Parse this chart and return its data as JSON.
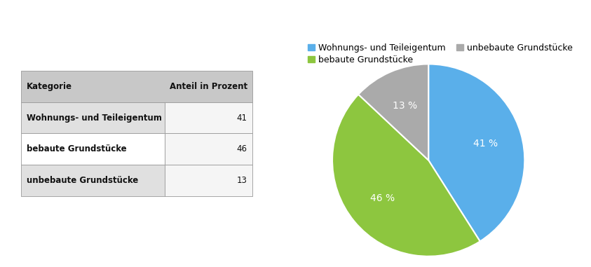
{
  "categories": [
    "Wohnungs- und Teileigentum",
    "bebaute Grundstücke",
    "unbebaute Grundstücke"
  ],
  "values": [
    41,
    46,
    13
  ],
  "colors": [
    "#5AAFEA",
    "#8DC63F",
    "#AAAAAA"
  ],
  "labels": [
    "41 %",
    "46 %",
    "13 %"
  ],
  "legend_labels": [
    "Wohnungs- und Teileigentum",
    "bebaute Grundstücke",
    "unbebaute Grundstücke"
  ],
  "table_header": [
    "Kategorie",
    "Anteil in Prozent"
  ],
  "table_rows": [
    [
      "Wohnungs- und Teileigentum",
      "41"
    ],
    [
      "bebaute Grundstücke",
      "46"
    ],
    [
      "unbebaute Grundstücke",
      "13"
    ]
  ],
  "header_bg": "#C8C8C8",
  "row_bg_odd": "#E0E0E0",
  "row_bg_even": "#FFFFFF",
  "row_bg_odd2": "#E0E0E0",
  "background_color": "#FFFFFF",
  "text_color_white": "#FFFFFF",
  "text_color_dark": "#111111",
  "startangle": 90,
  "label_fontsize": 10,
  "legend_fontsize": 9,
  "table_fontsize": 8.5
}
